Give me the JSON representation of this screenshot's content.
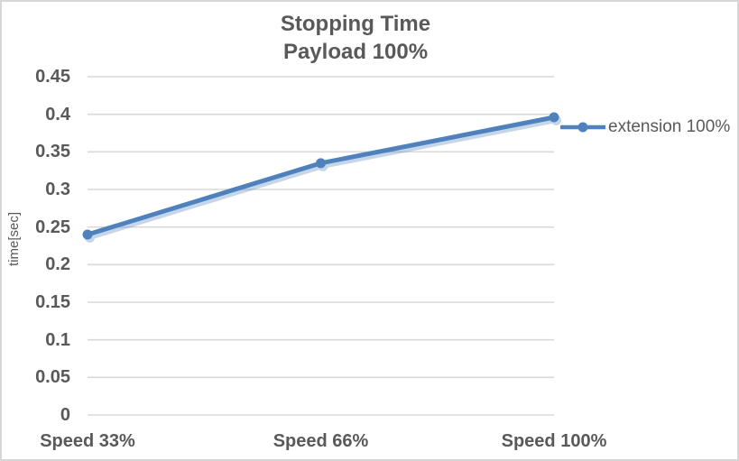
{
  "window": {
    "background": "#FFFFFF",
    "border_color": "#D6D6D6"
  },
  "chart_data": {
    "type": "line",
    "title": "Stopping Time",
    "subtitle": "Payload 100%",
    "categories": [
      "Speed 33%",
      "Speed 66%",
      "Speed 100%"
    ],
    "series": [
      {
        "name": "extension 100%",
        "values": [
          0.24,
          0.335,
          0.396
        ],
        "color": "#4F81BD",
        "marker": "circle",
        "shadow": true
      }
    ],
    "xlabel": "",
    "ylabel": "time[sec]",
    "ylim": [
      0,
      0.45
    ],
    "ytick_step": 0.05,
    "ytick_labels": [
      "0",
      "0.05",
      "0.1",
      "0.15",
      "0.2",
      "0.25",
      "0.3",
      "0.35",
      "0.4",
      "0.45"
    ],
    "grid": "horizontal",
    "gridline_color": "#D9D9D9",
    "text_color": "#595959",
    "legend_position": "right",
    "legend_entries": [
      "extension 100%"
    ]
  }
}
